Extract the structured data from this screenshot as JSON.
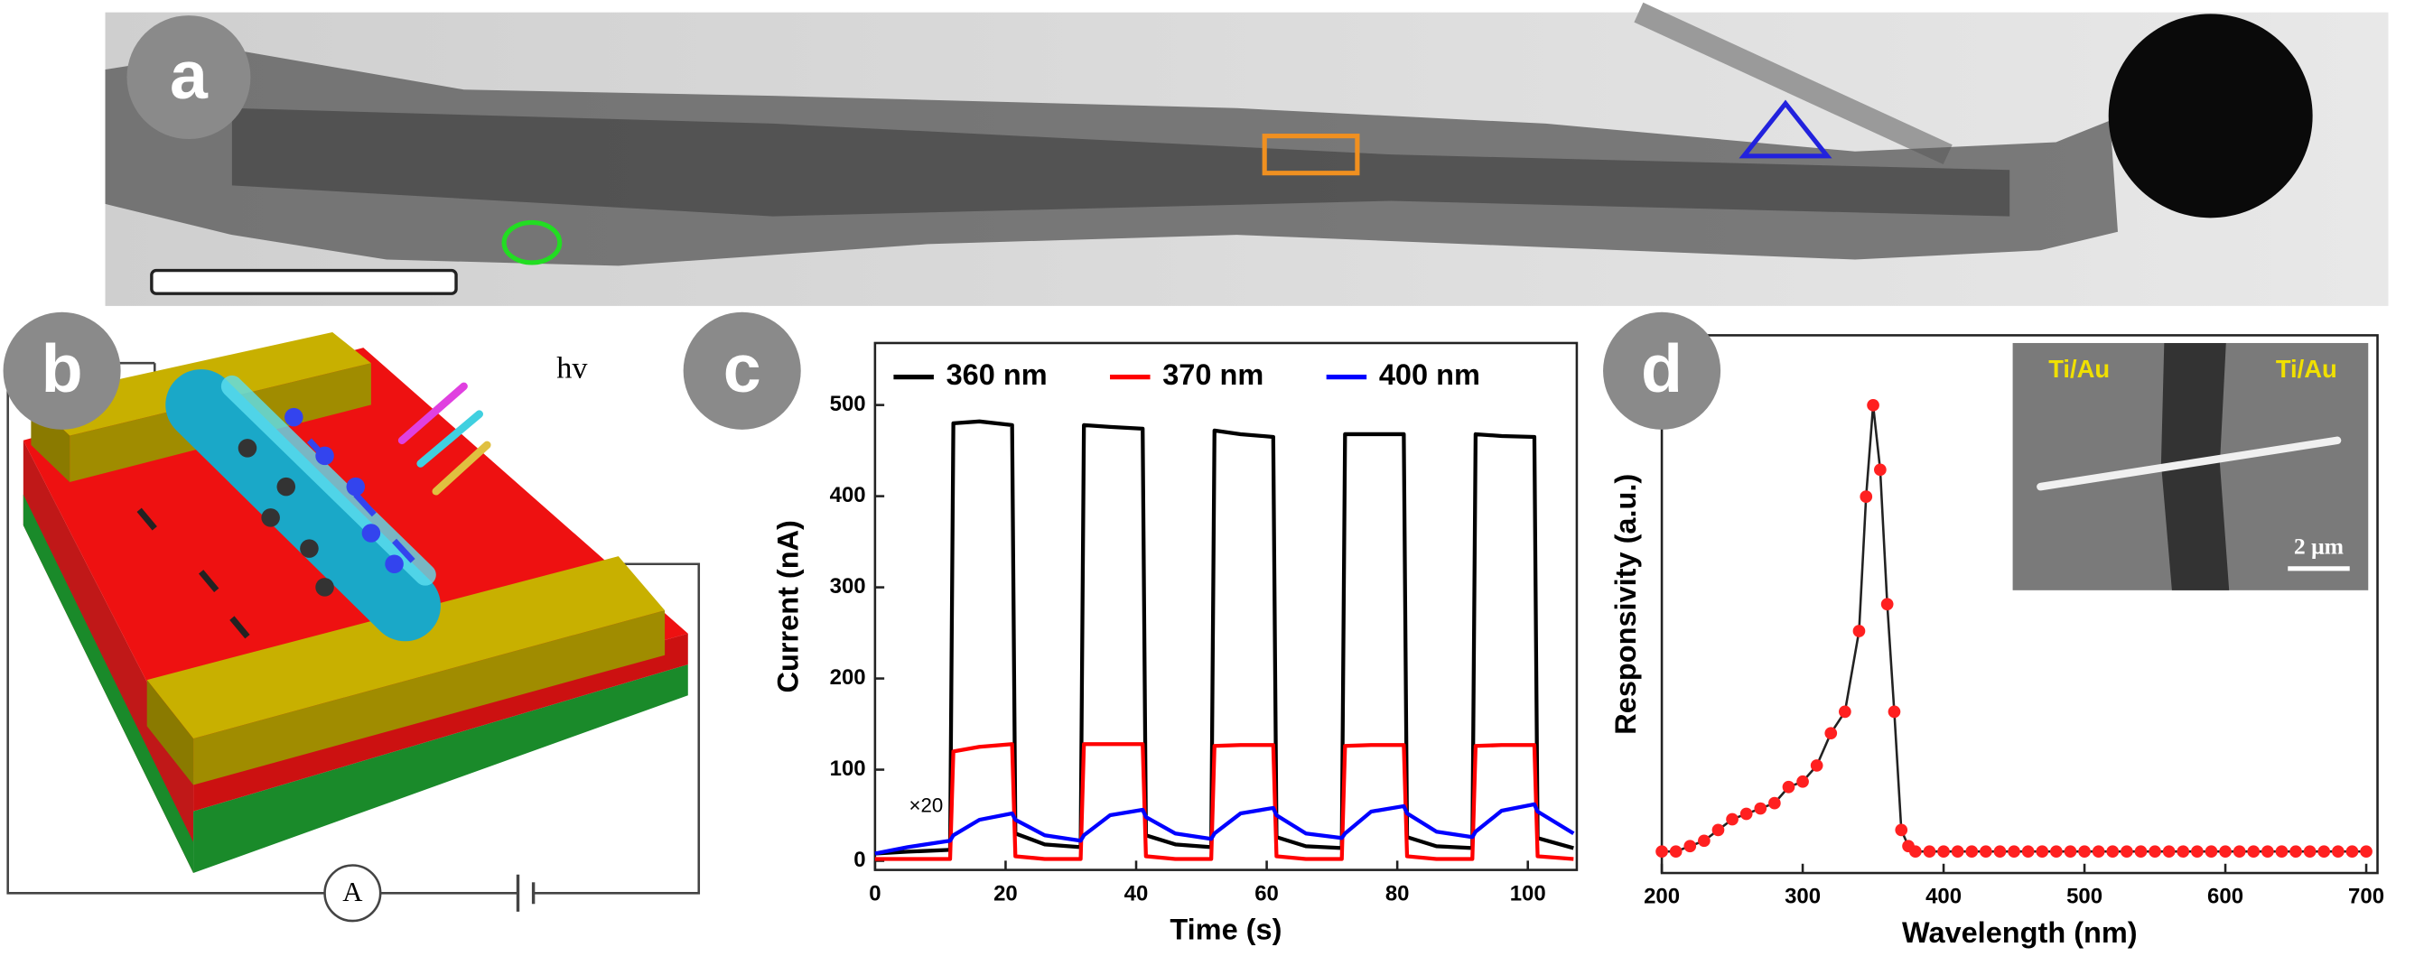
{
  "panel_labels": [
    "a",
    "b",
    "c",
    "d"
  ],
  "schematic": {
    "light": "hv",
    "meter": "A"
  },
  "inset": {
    "electrode_left": "Ti/Au",
    "electrode_right": "Ti/Au",
    "scale_bar": "2 μm"
  },
  "chart_data": [
    {
      "type": "line",
      "x_label": "Time (s)",
      "y_label": "Current (nA)",
      "annotation": "×20",
      "xlim": [
        0,
        107.5
      ],
      "xticks": [
        0,
        20,
        40,
        60,
        80,
        100
      ],
      "ylim": [
        -10,
        568
      ],
      "yticks": [
        0,
        100,
        200,
        300,
        400,
        500
      ],
      "x": [
        0,
        5,
        11.5,
        12,
        16,
        21,
        21.5,
        26,
        31.5,
        32,
        36,
        41,
        41.5,
        46,
        51.5,
        52,
        56,
        61,
        61.5,
        66,
        71.5,
        72,
        76,
        81,
        81.5,
        86,
        91.5,
        92,
        96,
        101,
        101.5,
        107
      ],
      "series": [
        {
          "name": "360 nm",
          "color": "#000000",
          "values": [
            8,
            10,
            12,
            480,
            482,
            478,
            30,
            18,
            15,
            478,
            476,
            474,
            28,
            18,
            15,
            472,
            468,
            465,
            26,
            16,
            14,
            468,
            468,
            468,
            26,
            16,
            14,
            468,
            466,
            465,
            25,
            14
          ]
        },
        {
          "name": "370 nm",
          "color": "#ff0000",
          "values": [
            2,
            2,
            2,
            120,
            125,
            128,
            5,
            2,
            2,
            128,
            128,
            128,
            5,
            2,
            2,
            126,
            127,
            127,
            5,
            2,
            2,
            126,
            127,
            127,
            5,
            2,
            2,
            126,
            127,
            127,
            5,
            2
          ]
        },
        {
          "name": "400 nm",
          "color": "#0000ff",
          "values": [
            8,
            15,
            22,
            28,
            45,
            52,
            45,
            28,
            22,
            28,
            50,
            56,
            48,
            30,
            24,
            30,
            52,
            58,
            50,
            30,
            25,
            30,
            54,
            60,
            52,
            32,
            26,
            32,
            55,
            62,
            54,
            30
          ]
        }
      ]
    },
    {
      "type": "line",
      "x_label": "Wavelength (nm)",
      "y_label": "Responsivity (a.u.)",
      "markers": true,
      "xlim": [
        200,
        708
      ],
      "xticks": [
        200,
        300,
        400,
        500,
        600,
        700
      ],
      "ylim": [
        0,
        1
      ],
      "x": [
        200,
        210,
        220,
        230,
        240,
        250,
        260,
        270,
        280,
        290,
        300,
        310,
        320,
        330,
        340,
        345,
        350,
        355,
        360,
        365,
        370,
        375,
        380,
        390,
        400,
        410,
        420,
        430,
        440,
        450,
        460,
        470,
        480,
        490,
        500,
        510,
        520,
        530,
        540,
        550,
        560,
        570,
        580,
        590,
        600,
        610,
        620,
        630,
        640,
        650,
        660,
        670,
        680,
        690,
        700
      ],
      "series": [
        {
          "name": "Responsivity",
          "color": "#ff2020",
          "values": [
            0.04,
            0.04,
            0.05,
            0.06,
            0.08,
            0.1,
            0.11,
            0.12,
            0.13,
            0.16,
            0.17,
            0.2,
            0.26,
            0.3,
            0.45,
            0.7,
            0.87,
            0.75,
            0.5,
            0.3,
            0.08,
            0.05,
            0.04,
            0.04,
            0.04,
            0.04,
            0.04,
            0.04,
            0.04,
            0.04,
            0.04,
            0.04,
            0.04,
            0.04,
            0.04,
            0.04,
            0.04,
            0.04,
            0.04,
            0.04,
            0.04,
            0.04,
            0.04,
            0.04,
            0.04,
            0.04,
            0.04,
            0.04,
            0.04,
            0.04,
            0.04,
            0.04,
            0.04,
            0.04,
            0.04
          ]
        }
      ]
    }
  ]
}
